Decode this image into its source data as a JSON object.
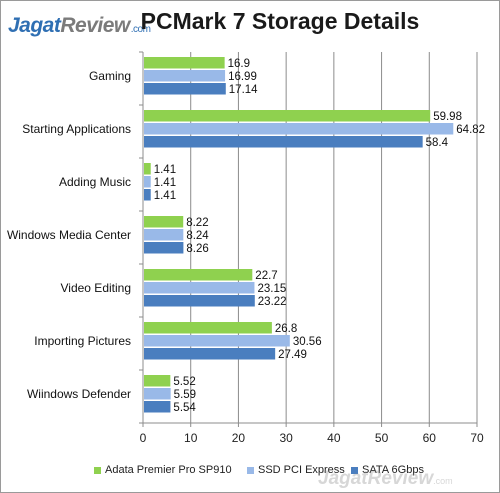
{
  "logo": {
    "part1": "Jagat",
    "part2": "Review",
    "part3": ".com"
  },
  "watermark": {
    "part1": "Jagat",
    "part2": "Review",
    "part3": ".com"
  },
  "chart_data": {
    "type": "bar",
    "orientation": "horizontal",
    "title": "PCMark 7 Storage Details",
    "categories": [
      "Gaming",
      "Starting Applications",
      "Adding Music",
      "Windows Media Center",
      "Video Editing",
      "Importing Pictures",
      "Wiindows Defender"
    ],
    "series": [
      {
        "name": "Adata Premier Pro SP910",
        "color": "#8fd14f",
        "values": [
          16.9,
          59.98,
          1.41,
          8.22,
          22.7,
          26.8,
          5.52
        ]
      },
      {
        "name": "SSD PCI Express",
        "color": "#99b9e8",
        "values": [
          16.99,
          64.82,
          1.41,
          8.24,
          23.15,
          30.56,
          5.59
        ]
      },
      {
        "name": "SATA 6Gbps",
        "color": "#4a7ebf",
        "values": [
          17.14,
          58.4,
          1.41,
          8.26,
          23.22,
          27.49,
          5.54
        ]
      }
    ],
    "xlim": [
      0,
      70
    ],
    "xticks": [
      0,
      10,
      20,
      30,
      40,
      50,
      60,
      70
    ],
    "grid": true,
    "legend_position": "bottom"
  }
}
